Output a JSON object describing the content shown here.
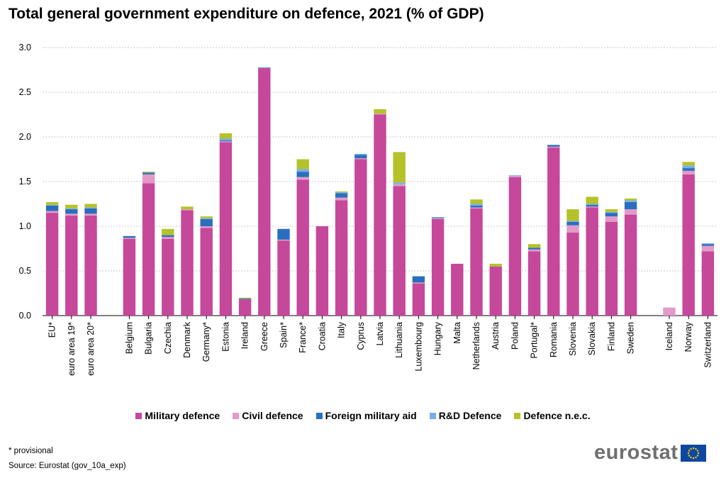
{
  "chart_data": {
    "type": "bar",
    "stacked": true,
    "title": "Total general government expenditure on defence, 2021 (% of GDP)",
    "xlabel": "",
    "ylabel": "",
    "ylim": [
      0,
      3.0
    ],
    "yticks": [
      "0.0",
      "0.5",
      "1.0",
      "1.5",
      "2.0",
      "2.5",
      "3.0"
    ],
    "grid": true,
    "legend_position": "bottom",
    "categories": [
      "EU*",
      "euro area 19*",
      "euro area 20*",
      "",
      "Belgium",
      "Bulgaria",
      "Czechia",
      "Denmark",
      "Germany*",
      "Estonia",
      "Ireland",
      "Greece",
      "Spain*",
      "France*",
      "Croatia",
      "Italy",
      "Cyprus",
      "Latvia",
      "Lithuania",
      "Luxembourg",
      "Hungary",
      "Malta",
      "Netherlands",
      "Austria",
      "Poland",
      "Portugal*",
      "Romania",
      "Slovenia",
      "Slovakia",
      "Finland",
      "Sweden",
      "",
      "Iceland",
      "Norway",
      "Switzerland"
    ],
    "series": [
      {
        "name": "Military defence",
        "color": "#c5489b",
        "values": [
          1.15,
          1.12,
          1.12,
          null,
          0.86,
          1.48,
          0.86,
          1.18,
          0.98,
          1.94,
          0.18,
          2.77,
          0.84,
          1.52,
          1.0,
          1.29,
          1.75,
          2.25,
          1.45,
          0.36,
          1.08,
          0.58,
          1.2,
          0.55,
          1.55,
          0.72,
          1.88,
          0.93,
          1.21,
          1.05,
          1.13,
          null,
          0.0,
          1.58,
          0.72
        ]
      },
      {
        "name": "Civil defence",
        "color": "#e39ac9",
        "values": [
          0.02,
          0.02,
          0.02,
          null,
          0.01,
          0.1,
          0.02,
          0.01,
          0.02,
          0.01,
          0.0,
          0.0,
          0.01,
          0.03,
          0.0,
          0.03,
          0.01,
          0.01,
          0.02,
          0.01,
          0.01,
          0.0,
          0.01,
          0.0,
          0.01,
          0.02,
          0.01,
          0.08,
          0.01,
          0.06,
          0.06,
          null,
          0.09,
          0.04,
          0.06
        ]
      },
      {
        "name": "Foreign military aid",
        "color": "#2a6fbe",
        "values": [
          0.06,
          0.05,
          0.06,
          null,
          0.02,
          0.02,
          0.02,
          0.0,
          0.08,
          0.01,
          0.01,
          0.0,
          0.12,
          0.06,
          0.0,
          0.05,
          0.04,
          0.0,
          0.0,
          0.07,
          0.01,
          0.0,
          0.02,
          0.0,
          0.0,
          0.02,
          0.02,
          0.04,
          0.02,
          0.04,
          0.08,
          null,
          0.0,
          0.03,
          0.02
        ]
      },
      {
        "name": "R&D Defence",
        "color": "#7aaee8",
        "values": [
          0.01,
          0.01,
          0.01,
          null,
          0.0,
          0.0,
          0.0,
          0.0,
          0.01,
          0.02,
          0.0,
          0.01,
          0.0,
          0.03,
          0.0,
          0.01,
          0.01,
          0.0,
          0.02,
          0.0,
          0.0,
          0.0,
          0.02,
          0.0,
          0.01,
          0.0,
          0.0,
          0.01,
          0.01,
          0.01,
          0.02,
          null,
          0.0,
          0.03,
          0.01
        ]
      },
      {
        "name": "Defence n.e.c.",
        "color": "#b5c22a",
        "values": [
          0.03,
          0.04,
          0.04,
          null,
          0.0,
          0.01,
          0.07,
          0.03,
          0.02,
          0.06,
          0.01,
          0.0,
          0.0,
          0.11,
          0.0,
          0.01,
          0.0,
          0.05,
          0.34,
          0.0,
          0.0,
          0.0,
          0.05,
          0.03,
          0.0,
          0.04,
          0.0,
          0.13,
          0.08,
          0.03,
          0.02,
          null,
          0.0,
          0.04,
          0.0
        ]
      }
    ]
  },
  "footnote": "* provisional",
  "source": "Source: Eurostat (gov_10a_exp)",
  "logo": {
    "text": "eurostat"
  }
}
